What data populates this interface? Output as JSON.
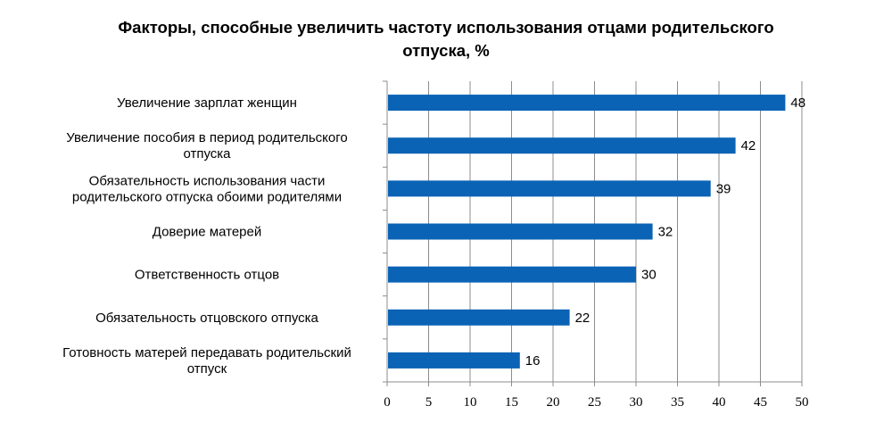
{
  "chart_data": {
    "type": "bar",
    "orientation": "horizontal",
    "title": "Факторы, способные увеличить частоту использования отцами родительского отпуска, %",
    "title_lines": [
      "Факторы, способные увеличить частоту использования отцами родительского",
      "отпуска, %"
    ],
    "categories": [
      [
        "Увеличение зарплат женщин"
      ],
      [
        "Увеличение пособия в период родительского",
        "отпуска"
      ],
      [
        "Обязательность использования части",
        "родительского отпуска обоими родителями"
      ],
      [
        "Доверие матерей"
      ],
      [
        "Ответственность отцов"
      ],
      [
        "Обязательность отцовского отпуска"
      ],
      [
        "Готовность матерей передавать родительский",
        "отпуск"
      ]
    ],
    "values": [
      48,
      42,
      39,
      32,
      30,
      22,
      16
    ],
    "xlim": [
      0,
      50
    ],
    "xticks": [
      "0",
      "5",
      "10",
      "15",
      "20",
      "25",
      "30",
      "35",
      "40",
      "45",
      "50"
    ],
    "xlabel": "",
    "ylabel": "",
    "grid": "vertical",
    "legend": "none",
    "bar_color": "#0b63b5"
  }
}
